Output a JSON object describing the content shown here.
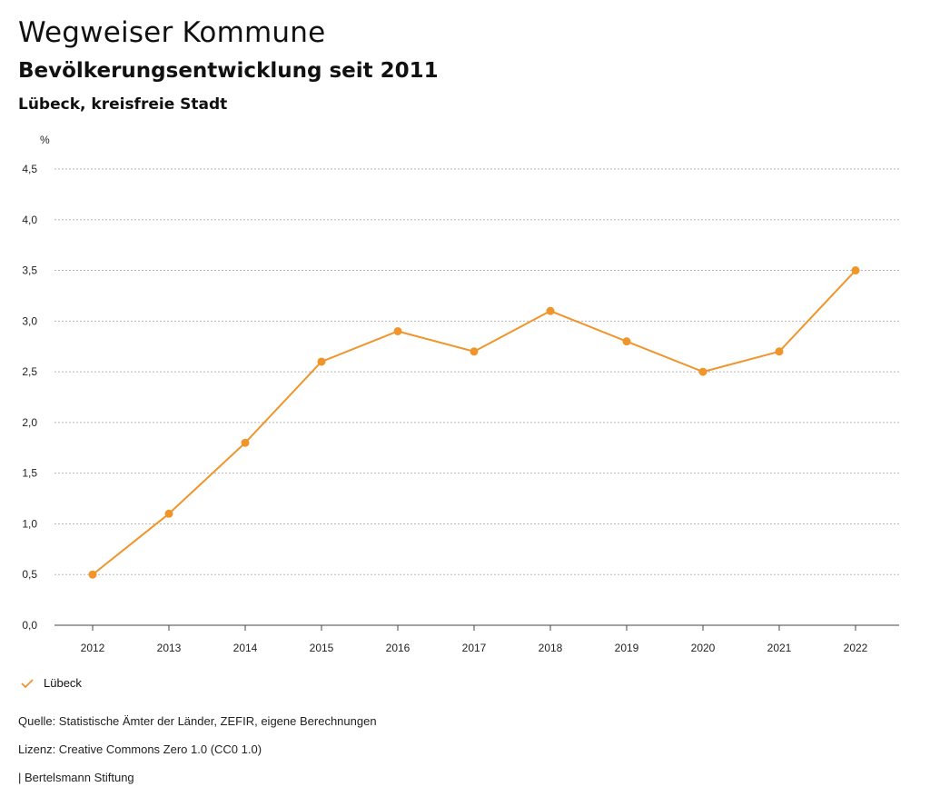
{
  "header": {
    "title": "Wegweiser Kommune",
    "subtitle": "Bevölkerungsentwicklung seit 2011",
    "region": "Lübeck, kreisfreie Stadt"
  },
  "legend": {
    "label": "Lübeck"
  },
  "footer": {
    "source": "Quelle: Statistische Ämter der Länder, ZEFIR, eigene Berechnungen",
    "license": "Lizenz: Creative Commons Zero 1.0 (CC0 1.0)",
    "publisher": "| Bertelsmann Stiftung"
  },
  "colors": {
    "series": "#f0952a",
    "grid": "#b5b5b5",
    "axis": "#444444"
  },
  "chart_data": {
    "type": "line",
    "title": "Bevölkerungsentwicklung seit 2011",
    "xlabel": "",
    "ylabel": "%",
    "categories": [
      "2012",
      "2013",
      "2014",
      "2015",
      "2016",
      "2017",
      "2018",
      "2019",
      "2020",
      "2021",
      "2022"
    ],
    "series": [
      {
        "name": "Lübeck",
        "values": [
          0.5,
          1.1,
          1.8,
          2.6,
          2.9,
          2.7,
          3.1,
          2.8,
          2.5,
          2.7,
          3.5
        ]
      }
    ],
    "ylim": [
      0,
      4.5
    ],
    "yticks": [
      "0,0",
      "0,5",
      "1,0",
      "1,5",
      "2,0",
      "2,5",
      "3,0",
      "3,5",
      "4,0",
      "4,5"
    ],
    "grid": true,
    "legend_position": "bottom-left"
  }
}
